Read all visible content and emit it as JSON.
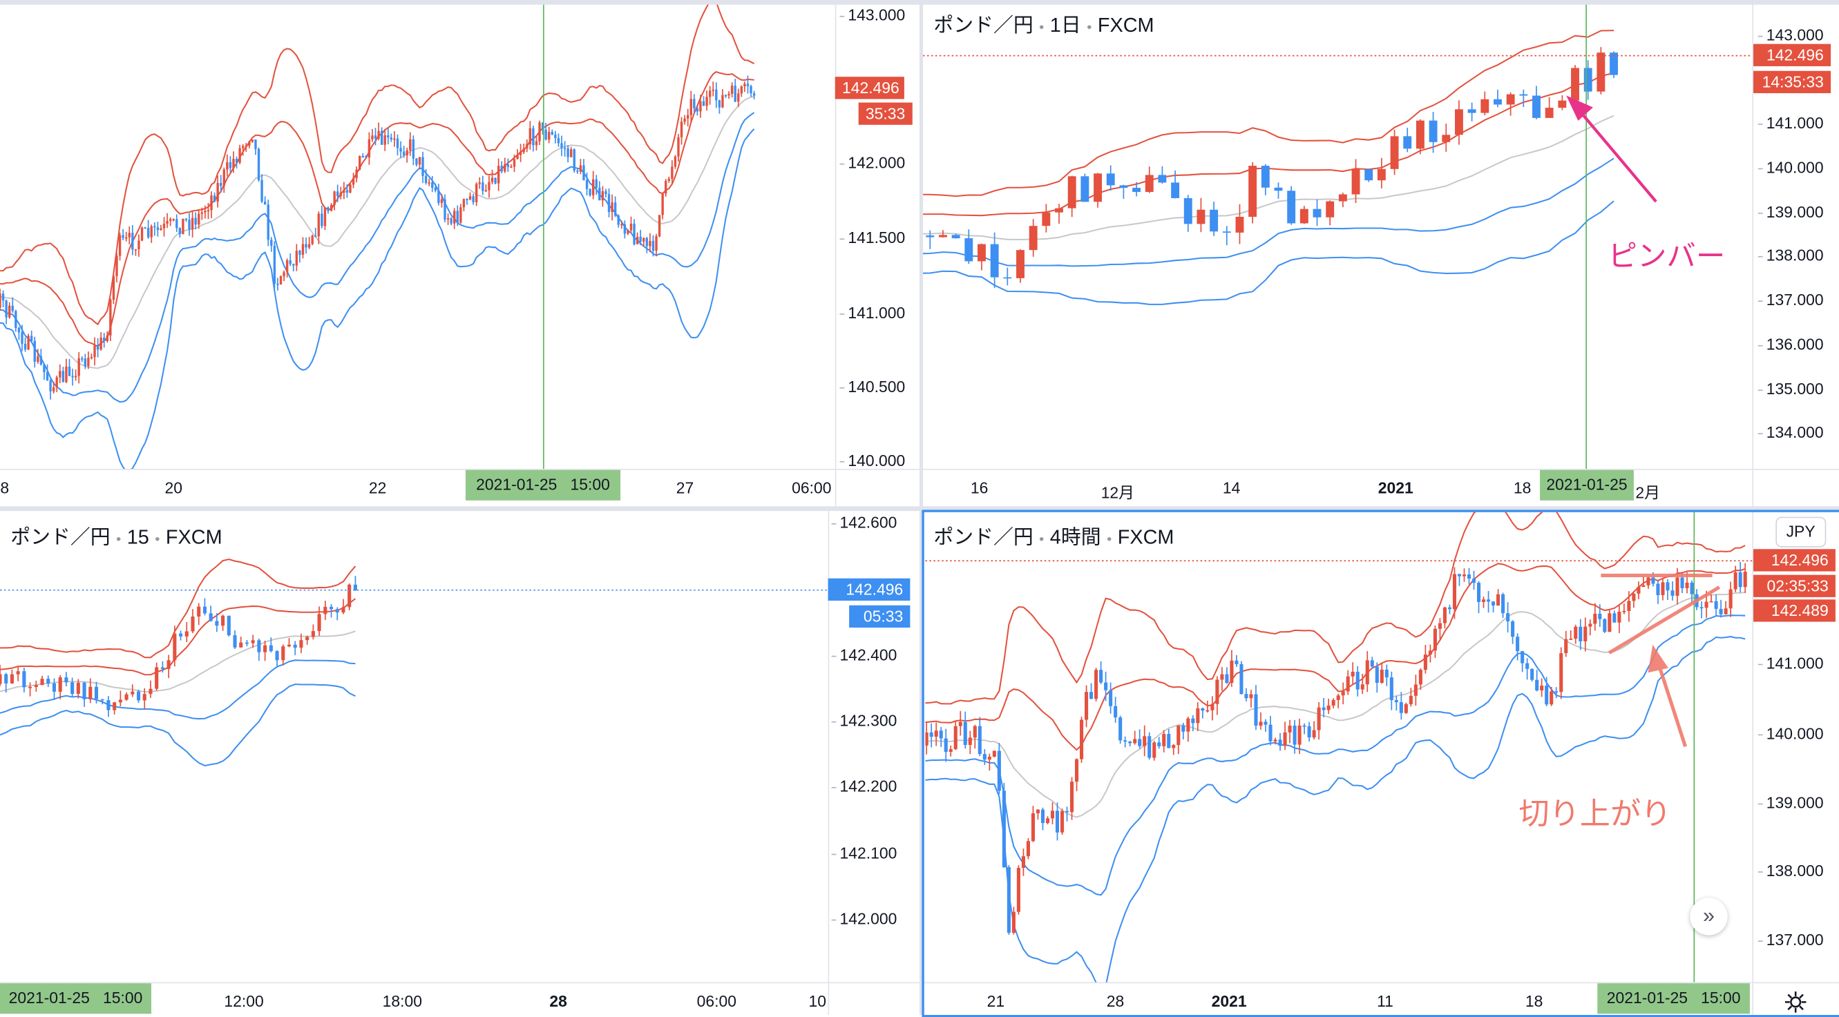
{
  "colors": {
    "up": "#e4513e",
    "down": "#3d8ff2",
    "mid": "#c8c8c8",
    "crosshair": "#5cb85c",
    "pin": "#e8338a",
    "annotation": "#f07a6c",
    "accent": "#2962ff"
  },
  "top_left": {
    "price_axis": [
      "143.000",
      "142.000",
      "141.500",
      "141.000",
      "140.500",
      "140.000"
    ],
    "price_tag": "142.496",
    "countdown": "35:33",
    "time_axis": [
      "8",
      "20",
      "22",
      "27",
      "06:00"
    ],
    "crosshair_time": "2021-01-25   15:00"
  },
  "top_right": {
    "title": {
      "symbol": "ポンド／円",
      "interval": "1日",
      "source": "FXCM"
    },
    "price_axis": [
      "143.000",
      "141.000",
      "140.000",
      "139.000",
      "138.000",
      "137.000",
      "136.000",
      "135.000",
      "134.000"
    ],
    "price_tag": "142.496",
    "countdown": "14:35:33",
    "time_axis": [
      "16",
      "12月",
      "14",
      "2021",
      "18",
      "2月"
    ],
    "crosshair_time": "2021-01-25",
    "annotation": "ピンバー"
  },
  "bottom_left": {
    "title": {
      "symbol": "ポンド／円",
      "interval": "15",
      "source": "FXCM"
    },
    "price_axis": [
      "142.600",
      "142.400",
      "142.300",
      "142.200",
      "142.100",
      "142.000"
    ],
    "price_tag": "142.496",
    "countdown": "05:33",
    "time_axis": [
      "12:00",
      "18:00",
      "28",
      "06:00",
      "10"
    ],
    "crosshair_time": "2021-01-25   15:00"
  },
  "bottom_right": {
    "title": {
      "symbol": "ポンド／円",
      "interval": "4時間",
      "source": "FXCM"
    },
    "price_axis": [
      "141.000",
      "140.000",
      "139.000",
      "138.000",
      "137.000"
    ],
    "currency_button": "JPY",
    "price_tag": "142.496",
    "countdown": "02:35:33",
    "crosshair_price": "142.489",
    "time_axis": [
      "21",
      "28",
      "2021",
      "11",
      "18"
    ],
    "crosshair_time": "2021-01-25   15:00",
    "annotation": "切り上がり"
  }
}
